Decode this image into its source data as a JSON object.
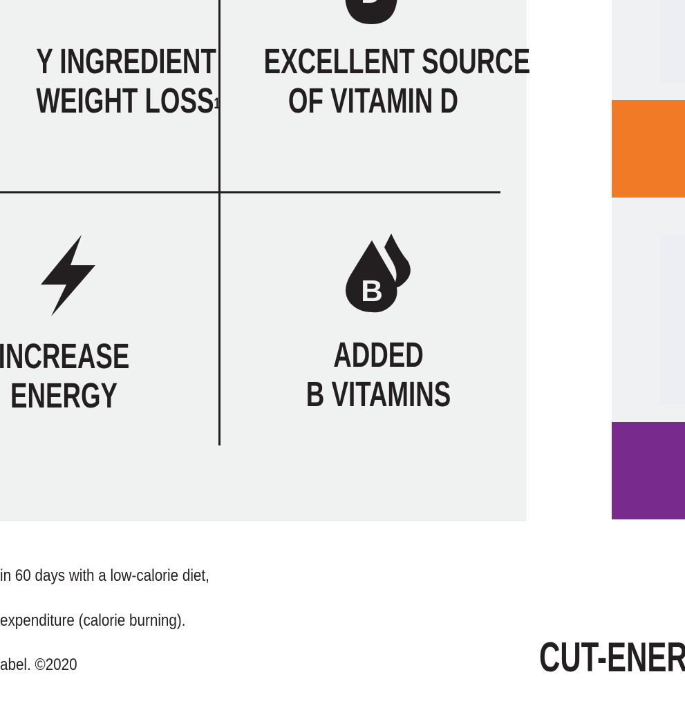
{
  "features": [
    {
      "line1": "Y INGREDIENT",
      "line2": "WEIGHT LOSS",
      "superscript": "1",
      "icon": "partial-circle-icon"
    },
    {
      "line1": "EXCELLENT SOURCE",
      "line2": "OF VITAMIN D",
      "icon": "vitamin-d-drop-icon"
    },
    {
      "line1": "INCREASE",
      "line2": "ENERGY",
      "icon": "lightning-bolt-icon"
    },
    {
      "line1": "ADDED",
      "line2": "B VITAMINS",
      "icon": "vitamin-b-drops-icon",
      "icon_letter": "B"
    }
  ],
  "footnotes": [
    "in 60 days with a low-calorie diet,",
    "expenditure (calorie burning).",
    "abel. ©2020"
  ],
  "brand_text": "CUT-ENER",
  "colors": {
    "panel": "#f0f1f1",
    "ink": "#231f20",
    "orange": "#f17a27",
    "purple": "#782b8c"
  }
}
